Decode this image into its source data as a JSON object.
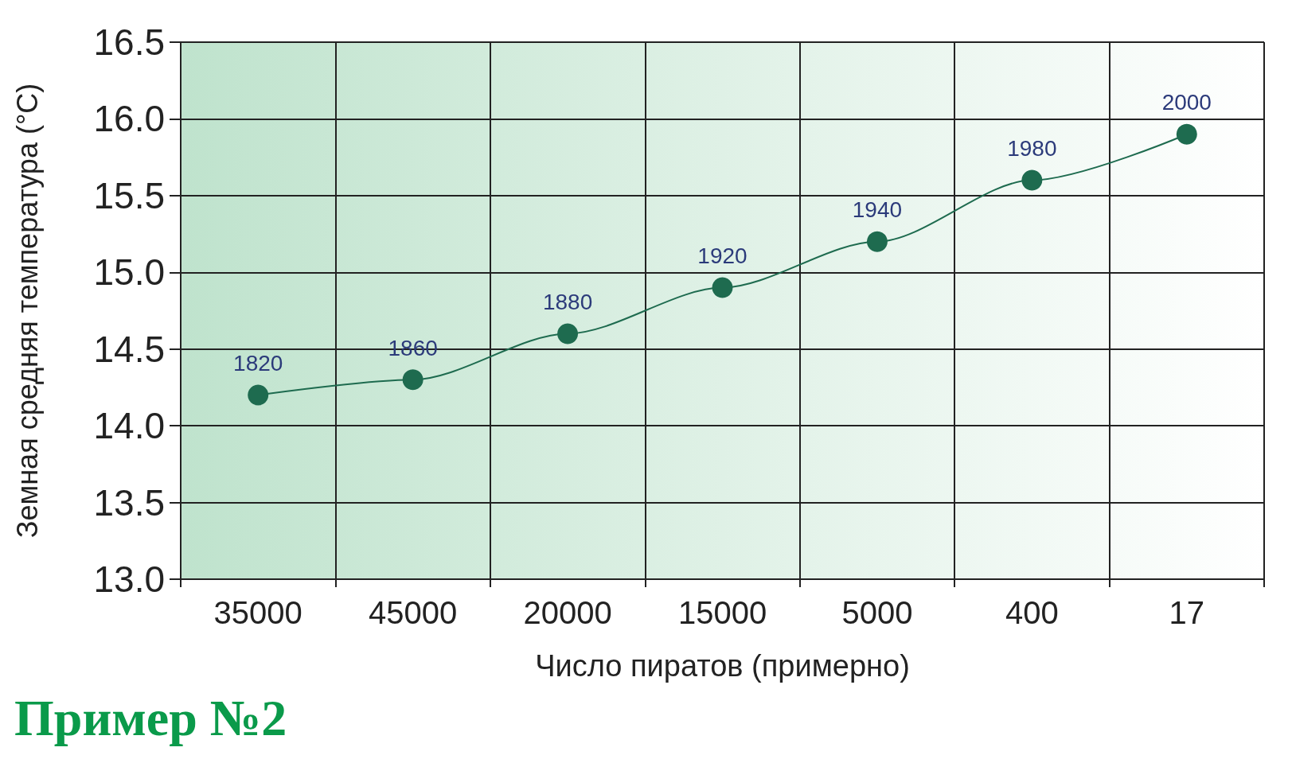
{
  "chart_data": {
    "type": "line",
    "xlabel": "Число пиратов (примерно)",
    "ylabel": "Земная средняя температура (°C)",
    "annotations": [
      "Пример №2",
      {
        "text": "1820",
        "x": "35000",
        "y": 14.2
      },
      {
        "text": "1860",
        "x": "45000",
        "y": 14.3
      },
      {
        "text": "1880",
        "x": "20000",
        "y": 14.6
      },
      {
        "text": "1920",
        "x": "15000",
        "y": 14.9
      },
      {
        "text": "1940",
        "x": "5000",
        "y": 15.2
      },
      {
        "text": "1980",
        "x": "400",
        "y": 15.6
      },
      {
        "text": "2000",
        "x": "17",
        "y": 15.9
      }
    ],
    "categories": [
      "35000",
      "45000",
      "20000",
      "15000",
      "5000",
      "400",
      "17"
    ],
    "series": [
      {
        "color": "#1e6b4f",
        "values": [
          14.2,
          14.3,
          14.6,
          14.9,
          15.2,
          15.6,
          15.9
        ]
      }
    ],
    "ylim": [
      13,
      16.5
    ],
    "yticks": [
      {
        "value": 13,
        "label": "13.0"
      },
      13.5,
      {
        "value": 14,
        "label": "14.0"
      },
      14.5,
      {
        "value": 15,
        "label": "15.0"
      },
      15.5,
      {
        "value": 16,
        "label": "16.0"
      },
      16.5
    ],
    "grid": true,
    "marker": "circle",
    "line_style": "solid"
  }
}
